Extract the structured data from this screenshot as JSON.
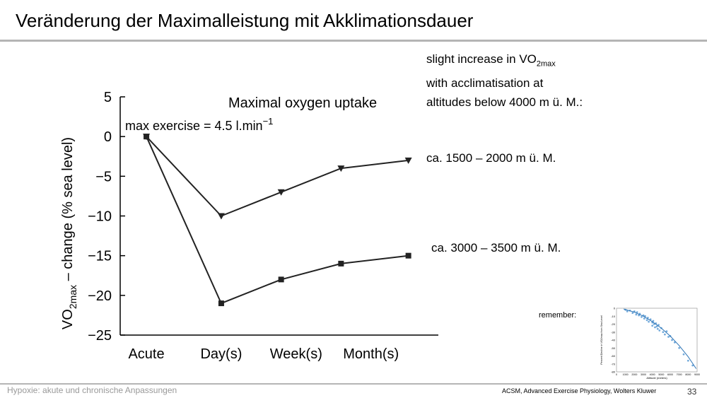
{
  "slide": {
    "title": "Veränderung der Maximalleistung mit Akklimationsdauer",
    "footer_left": "Hypoxie: akute und chronische Anpassungen",
    "footer_source": "ACSM, Advanced Exercise Physiology, Wolters Kluwer",
    "page_number": "33"
  },
  "notes": {
    "intro_prefix": "slight increase in VO",
    "intro_sub": "2max",
    "intro_line2": "with acclimatisation at",
    "intro_line3": "altitudes below 4000 m ü. M.:",
    "label_low": "ca. 1500 – 2000 m ü. M.",
    "label_high": "ca. 3000 – 3500 m ü. M."
  },
  "remember_label": "remember:",
  "colors": {
    "line": "#222222",
    "axis": "#000000",
    "inset_points": "#5b9bd5",
    "inset_line": "#2e75b6"
  },
  "chart_data": [
    {
      "type": "line",
      "title": "Maximal oxygen uptake",
      "annotation": "max exercise = 4.5 l.min",
      "annotation_sup": "−1",
      "ylabel_prefix": "VO",
      "ylabel_sub": "2max",
      "ylabel_suffix": " – change (% sea level)",
      "xlabel": "",
      "categories": [
        "Acute",
        "Day(s)",
        "Week(s)",
        "Month(s)"
      ],
      "x": [
        0,
        1,
        1.8,
        2.6,
        3.5
      ],
      "ylim": [
        -25,
        5
      ],
      "yticks": [
        5,
        0,
        -5,
        -10,
        -15,
        -20,
        -25
      ],
      "ytick_labels": [
        "5",
        "0",
        "−5",
        "−10",
        "−15",
        "−20",
        "−25"
      ],
      "series": [
        {
          "marker": "triangle-down",
          "values": [
            0,
            -10,
            -7,
            -4,
            -3
          ]
        },
        {
          "marker": "square",
          "values": [
            0,
            -21,
            -18,
            -16,
            -15
          ]
        }
      ]
    },
    {
      "type": "scatter",
      "xlabel": "Altitude (meters)",
      "ylabel": "Percent Decline in VO2max from Sea Level",
      "xticks": [
        0,
        1000,
        2000,
        3000,
        4000,
        5000,
        6000,
        7000,
        8000,
        9000
      ],
      "xtick_labels": [
        "0",
        "1000",
        "2000",
        "3000",
        "4000",
        "5000",
        "6000",
        "7000",
        "8000",
        "9000"
      ],
      "yticks": [
        0,
        -10,
        -20,
        -30,
        -40,
        -50,
        -60,
        -70,
        -80
      ],
      "ytick_labels": [
        "0",
        "-10",
        "-20",
        "-30",
        "-40",
        "-50",
        "-60",
        "-70",
        "-80"
      ],
      "xlim": [
        0,
        9000
      ],
      "ylim": [
        -80,
        0
      ],
      "points": [
        [
          1000,
          -2
        ],
        [
          1200,
          -4
        ],
        [
          1500,
          -3
        ],
        [
          1800,
          -6
        ],
        [
          2000,
          -4
        ],
        [
          2200,
          -8
        ],
        [
          2300,
          -5
        ],
        [
          2500,
          -9
        ],
        [
          2600,
          -7
        ],
        [
          2800,
          -11
        ],
        [
          3000,
          -9
        ],
        [
          3100,
          -13
        ],
        [
          3200,
          -10
        ],
        [
          3400,
          -15
        ],
        [
          3500,
          -12
        ],
        [
          3600,
          -17
        ],
        [
          3800,
          -14
        ],
        [
          4000,
          -18
        ],
        [
          4000,
          -22
        ],
        [
          4100,
          -16
        ],
        [
          4200,
          -20
        ],
        [
          4300,
          -24
        ],
        [
          4400,
          -19
        ],
        [
          4500,
          -23
        ],
        [
          4600,
          -26
        ],
        [
          4700,
          -21
        ],
        [
          4800,
          -28
        ],
        [
          5000,
          -25
        ],
        [
          5200,
          -30
        ],
        [
          5400,
          -33
        ],
        [
          5600,
          -29
        ],
        [
          5800,
          -36
        ],
        [
          6000,
          -35
        ],
        [
          6200,
          -40
        ],
        [
          6500,
          -43
        ],
        [
          7000,
          -50
        ],
        [
          7500,
          -58
        ],
        [
          8000,
          -66
        ],
        [
          8500,
          -72
        ]
      ],
      "fit": [
        [
          800,
          -1
        ],
        [
          2000,
          -5
        ],
        [
          3000,
          -10
        ],
        [
          4000,
          -17
        ],
        [
          5000,
          -25
        ],
        [
          6000,
          -35
        ],
        [
          7000,
          -47
        ],
        [
          8000,
          -61
        ],
        [
          8900,
          -76
        ]
      ]
    }
  ]
}
